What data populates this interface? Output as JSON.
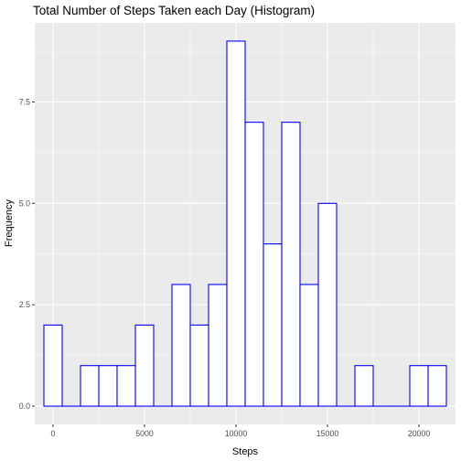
{
  "chart_data": {
    "type": "bar",
    "title": "Total Number of Steps Taken each Day (Histogram)",
    "xlabel": "Steps",
    "ylabel": "Frequency",
    "bin_width": 1000,
    "xlim": [
      -1000,
      22000
    ],
    "ylim": [
      -0.45,
      9.45
    ],
    "x_ticks": [
      0,
      5000,
      10000,
      15000,
      20000
    ],
    "x_tick_labels": [
      "0",
      "5000",
      "10000",
      "15000",
      "20000"
    ],
    "y_ticks": [
      0,
      2.5,
      5,
      7.5
    ],
    "y_tick_labels": [
      "0.0",
      "2.5",
      "5.0",
      "7.5"
    ],
    "bins": [
      {
        "center": 0,
        "count": 2
      },
      {
        "center": 1000,
        "count": 0
      },
      {
        "center": 2000,
        "count": 1
      },
      {
        "center": 3000,
        "count": 1
      },
      {
        "center": 4000,
        "count": 1
      },
      {
        "center": 5000,
        "count": 2
      },
      {
        "center": 6000,
        "count": 0
      },
      {
        "center": 7000,
        "count": 3
      },
      {
        "center": 8000,
        "count": 2
      },
      {
        "center": 9000,
        "count": 3
      },
      {
        "center": 10000,
        "count": 9
      },
      {
        "center": 11000,
        "count": 7
      },
      {
        "center": 12000,
        "count": 4
      },
      {
        "center": 13000,
        "count": 7
      },
      {
        "center": 14000,
        "count": 3
      },
      {
        "center": 15000,
        "count": 5
      },
      {
        "center": 16000,
        "count": 0
      },
      {
        "center": 17000,
        "count": 1
      },
      {
        "center": 18000,
        "count": 0
      },
      {
        "center": 19000,
        "count": 0
      },
      {
        "center": 20000,
        "count": 1
      },
      {
        "center": 21000,
        "count": 1
      }
    ],
    "grid": true,
    "colors": {
      "panel_background": "#ebebeb",
      "grid_major": "#ffffff",
      "bar_fill": "#ffffff",
      "bar_outline": "#0000ff"
    }
  }
}
